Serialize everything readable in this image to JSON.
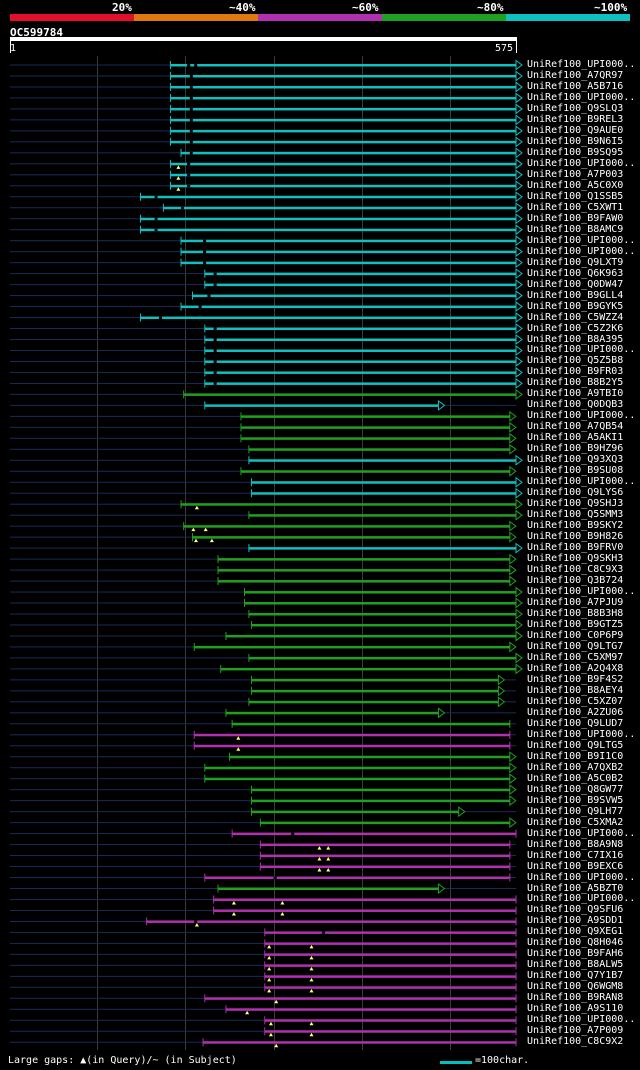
{
  "colors": {
    "bg": "#000000",
    "text": "#ffffff",
    "backbone": "#1a2a5a",
    "grid": "#3a3a3a",
    "marker": "#ffff80",
    "bands": [
      "#e0102a",
      "#e07810",
      "#b030b0",
      "#20a020",
      "#10c0c0"
    ],
    "hit": {
      "c": "#10c0c0",
      "g": "#20a020",
      "m": "#b030b0"
    }
  },
  "legend": {
    "labels": [
      "20%",
      "~40%",
      "~60%",
      "~80%",
      "~100%"
    ]
  },
  "query": {
    "id": "OC599784",
    "start": "1",
    "end": "575",
    "length": 575
  },
  "footer": {
    "gaps_text": "Large gaps: ▲(in Query)/~ (in Subject)",
    "scale_text": "=100char."
  },
  "hits": [
    {
      "label": "UniRef100_UPI000..",
      "c": "c",
      "s": 183,
      "e": 575,
      "a": 1,
      "bk": [
        202,
        210
      ]
    },
    {
      "label": "UniRef100_A7QR97",
      "c": "c",
      "s": 183,
      "e": 575,
      "a": 1,
      "bk": [
        205
      ]
    },
    {
      "label": "UniRef100_A5B716",
      "c": "c",
      "s": 183,
      "e": 575,
      "a": 1,
      "bk": [
        205
      ]
    },
    {
      "label": "UniRef100_UPI000..",
      "c": "c",
      "s": 183,
      "e": 575,
      "a": 1,
      "bk": [
        205
      ]
    },
    {
      "label": "UniRef100_Q9SLQ3",
      "c": "c",
      "s": 183,
      "e": 575,
      "a": 1,
      "bk": [
        205
      ]
    },
    {
      "label": "UniRef100_B9REL3",
      "c": "c",
      "s": 183,
      "e": 575,
      "a": 1,
      "bk": [
        205
      ]
    },
    {
      "label": "UniRef100_Q9AUE0",
      "c": "c",
      "s": 183,
      "e": 575,
      "a": 1,
      "bk": [
        205
      ]
    },
    {
      "label": "UniRef100_B9N6I5",
      "c": "c",
      "s": 183,
      "e": 575,
      "a": 1,
      "bk": [
        205
      ]
    },
    {
      "label": "UniRef100_B9SQ95",
      "c": "c",
      "s": 195,
      "e": 575,
      "a": 1,
      "bk": [
        205
      ]
    },
    {
      "label": "UniRef100_UPI000..",
      "c": "c",
      "s": 183,
      "e": 575,
      "a": 1,
      "bk": [
        202
      ],
      "mk": [
        192
      ]
    },
    {
      "label": "UniRef100_A7P003",
      "c": "c",
      "s": 183,
      "e": 575,
      "a": 1,
      "bk": [
        202
      ],
      "mk": [
        192
      ]
    },
    {
      "label": "UniRef100_A5C0X0",
      "c": "c",
      "s": 183,
      "e": 575,
      "a": 1,
      "bk": [
        202
      ],
      "mk": [
        192
      ]
    },
    {
      "label": "UniRef100_Q1SSB5",
      "c": "c",
      "s": 149,
      "e": 575,
      "a": 1,
      "bk": [
        165
      ]
    },
    {
      "label": "UniRef100_C5XWT1",
      "c": "c",
      "s": 175,
      "e": 575,
      "a": 1,
      "bk": [
        195
      ]
    },
    {
      "label": "UniRef100_B9FAW0",
      "c": "c",
      "s": 149,
      "e": 575,
      "a": 1,
      "bk": [
        165
      ]
    },
    {
      "label": "UniRef100_B8AMC9",
      "c": "c",
      "s": 149,
      "e": 575,
      "a": 1,
      "bk": [
        165
      ]
    },
    {
      "label": "UniRef100_UPI000..",
      "c": "c",
      "s": 195,
      "e": 575,
      "a": 1,
      "bk": [
        220
      ]
    },
    {
      "label": "UniRef100_UPI000..",
      "c": "c",
      "s": 195,
      "e": 575,
      "a": 1,
      "bk": [
        220
      ]
    },
    {
      "label": "UniRef100_Q9LXT9",
      "c": "c",
      "s": 195,
      "e": 575,
      "a": 1,
      "bk": [
        220
      ]
    },
    {
      "label": "UniRef100_Q6K963",
      "c": "c",
      "s": 222,
      "e": 575,
      "a": 1,
      "bk": [
        232
      ]
    },
    {
      "label": "UniRef100_Q0DW47",
      "c": "c",
      "s": 222,
      "e": 575,
      "a": 1,
      "bk": [
        232
      ]
    },
    {
      "label": "UniRef100_B9GLL4",
      "c": "c",
      "s": 208,
      "e": 575,
      "a": 1,
      "bk": [
        225
      ]
    },
    {
      "label": "UniRef100_B9GYK5",
      "c": "c",
      "s": 195,
      "e": 575,
      "a": 1,
      "bk": [
        215
      ]
    },
    {
      "label": "UniRef100_C5WZZ4",
      "c": "c",
      "s": 149,
      "e": 575,
      "a": 1,
      "bk": [
        170
      ]
    },
    {
      "label": "UniRef100_C5Z2K6",
      "c": "c",
      "s": 222,
      "e": 575,
      "a": 1,
      "bk": [
        232
      ]
    },
    {
      "label": "UniRef100_B8A395",
      "c": "c",
      "s": 222,
      "e": 575,
      "a": 1,
      "bk": [
        232
      ]
    },
    {
      "label": "UniRef100_UPI000..",
      "c": "c",
      "s": 222,
      "e": 575,
      "a": 1,
      "bk": [
        232
      ]
    },
    {
      "label": "UniRef100_Q5Z5B8",
      "c": "c",
      "s": 222,
      "e": 575,
      "a": 1,
      "bk": [
        232
      ]
    },
    {
      "label": "UniRef100_B9FR03",
      "c": "c",
      "s": 222,
      "e": 575,
      "a": 1,
      "bk": [
        232
      ]
    },
    {
      "label": "UniRef100_B8B2Y5",
      "c": "c",
      "s": 222,
      "e": 575,
      "a": 1,
      "bk": [
        232
      ]
    },
    {
      "label": "UniRef100_A9TBI0",
      "c": "g",
      "s": 198,
      "e": 575,
      "a": 1,
      "bk": []
    },
    {
      "label": "UniRef100_Q0DQB3",
      "c": "c",
      "s": 222,
      "e": 487,
      "a": 1,
      "bk": []
    },
    {
      "label": "UniRef100_UPI000..",
      "c": "g",
      "s": 263,
      "e": 568,
      "a": 1,
      "bk": []
    },
    {
      "label": "UniRef100_A7QB54",
      "c": "g",
      "s": 263,
      "e": 568,
      "a": 1,
      "bk": []
    },
    {
      "label": "UniRef100_A5AKI1",
      "c": "g",
      "s": 263,
      "e": 568,
      "a": 1,
      "bk": []
    },
    {
      "label": "UniRef100_B9HZ96",
      "c": "g",
      "s": 272,
      "e": 568,
      "a": 1,
      "bk": []
    },
    {
      "label": "UniRef100_Q93XQ3",
      "c": "c",
      "s": 272,
      "e": 575,
      "a": 1,
      "bk": []
    },
    {
      "label": "UniRef100_B9SU08",
      "c": "g",
      "s": 263,
      "e": 568,
      "a": 1,
      "bk": []
    },
    {
      "label": "UniRef100_UPI000..",
      "c": "c",
      "s": 275,
      "e": 575,
      "a": 1,
      "bk": []
    },
    {
      "label": "UniRef100_Q9LYS6",
      "c": "c",
      "s": 275,
      "e": 575,
      "a": 1,
      "bk": []
    },
    {
      "label": "UniRef100_Q9SHJ3",
      "c": "g",
      "s": 195,
      "e": 575,
      "a": 1,
      "bk": [],
      "mk": [
        213
      ]
    },
    {
      "label": "UniRef100_Q5SMM3",
      "c": "g",
      "s": 272,
      "e": 575,
      "a": 1,
      "bk": []
    },
    {
      "label": "UniRef100_B9SKY2",
      "c": "g",
      "s": 198,
      "e": 568,
      "a": 1,
      "bk": [],
      "mk": [
        209,
        223
      ]
    },
    {
      "label": "UniRef100_B9H826",
      "c": "g",
      "s": 208,
      "e": 568,
      "a": 1,
      "bk": [],
      "mk": [
        212,
        230
      ]
    },
    {
      "label": "UniRef100_B9FRV0",
      "c": "c",
      "s": 272,
      "e": 575,
      "a": 1,
      "bk": []
    },
    {
      "label": "UniRef100_Q9SKH3",
      "c": "g",
      "s": 237,
      "e": 568,
      "a": 1,
      "bk": []
    },
    {
      "label": "UniRef100_C8C9X3",
      "c": "g",
      "s": 237,
      "e": 568,
      "a": 1,
      "bk": []
    },
    {
      "label": "UniRef100_Q3B724",
      "c": "g",
      "s": 237,
      "e": 568,
      "a": 1,
      "bk": []
    },
    {
      "label": "UniRef100_UPI000..",
      "c": "g",
      "s": 267,
      "e": 575,
      "a": 1,
      "bk": []
    },
    {
      "label": "UniRef100_A7PJU9",
      "c": "g",
      "s": 267,
      "e": 575,
      "a": 1,
      "bk": []
    },
    {
      "label": "UniRef100_B8B3H8",
      "c": "g",
      "s": 272,
      "e": 575,
      "a": 1,
      "bk": []
    },
    {
      "label": "UniRef100_B9GTZ5",
      "c": "g",
      "s": 275,
      "e": 575,
      "a": 1,
      "bk": []
    },
    {
      "label": "UniRef100_C0P6P9",
      "c": "g",
      "s": 246,
      "e": 575,
      "a": 1,
      "bk": []
    },
    {
      "label": "UniRef100_Q9LTG7",
      "c": "g",
      "s": 210,
      "e": 568,
      "a": 1,
      "bk": []
    },
    {
      "label": "UniRef100_C5XM97",
      "c": "g",
      "s": 272,
      "e": 575,
      "a": 1,
      "bk": []
    },
    {
      "label": "UniRef100_A2Q4X8",
      "c": "g",
      "s": 240,
      "e": 575,
      "a": 1,
      "bk": []
    },
    {
      "label": "UniRef100_B9F4S2",
      "c": "g",
      "s": 275,
      "e": 555,
      "a": 1,
      "bk": []
    },
    {
      "label": "UniRef100_B8AEY4",
      "c": "g",
      "s": 275,
      "e": 555,
      "a": 1,
      "bk": []
    },
    {
      "label": "UniRef100_C5XZ07",
      "c": "g",
      "s": 272,
      "e": 555,
      "a": 1,
      "bk": []
    },
    {
      "label": "UniRef100_A2ZU06",
      "c": "g",
      "s": 246,
      "e": 487,
      "a": 1,
      "bk": []
    },
    {
      "label": "UniRef100_Q9LUD7",
      "c": "g",
      "s": 253,
      "e": 568,
      "a": 0,
      "bk": []
    },
    {
      "label": "UniRef100_UPI000..",
      "c": "m",
      "s": 210,
      "e": 568,
      "a": 0,
      "bk": [],
      "mk": [
        260
      ]
    },
    {
      "label": "UniRef100_Q9LTG5",
      "c": "m",
      "s": 210,
      "e": 568,
      "a": 0,
      "bk": [],
      "mk": [
        260
      ]
    },
    {
      "label": "UniRef100_B9I1C0",
      "c": "g",
      "s": 250,
      "e": 568,
      "a": 1,
      "bk": []
    },
    {
      "label": "UniRef100_A7QXB2",
      "c": "g",
      "s": 222,
      "e": 568,
      "a": 1,
      "bk": []
    },
    {
      "label": "UniRef100_A5C0B2",
      "c": "g",
      "s": 222,
      "e": 568,
      "a": 1,
      "bk": []
    },
    {
      "label": "UniRef100_Q8GW77",
      "c": "g",
      "s": 275,
      "e": 568,
      "a": 1,
      "bk": []
    },
    {
      "label": "UniRef100_B9SVW5",
      "c": "g",
      "s": 275,
      "e": 568,
      "a": 1,
      "bk": []
    },
    {
      "label": "UniRef100_Q9LH77",
      "c": "g",
      "s": 275,
      "e": 510,
      "a": 1,
      "bk": []
    },
    {
      "label": "UniRef100_C5XMA2",
      "c": "g",
      "s": 285,
      "e": 568,
      "a": 1,
      "bk": []
    },
    {
      "label": "UniRef100_UPI000..",
      "c": "m",
      "s": 253,
      "e": 575,
      "a": 0,
      "bk": [
        320
      ]
    },
    {
      "label": "UniRef100_B8A9N8",
      "c": "m",
      "s": 285,
      "e": 568,
      "a": 0,
      "bk": [],
      "mk": [
        352,
        362
      ]
    },
    {
      "label": "UniRef100_C7IX16",
      "c": "m",
      "s": 285,
      "e": 568,
      "a": 0,
      "bk": [],
      "mk": [
        352,
        362
      ]
    },
    {
      "label": "UniRef100_B9EXC6",
      "c": "m",
      "s": 285,
      "e": 568,
      "a": 0,
      "bk": [],
      "mk": [
        352,
        362
      ]
    },
    {
      "label": "UniRef100_UPI000..",
      "c": "m",
      "s": 222,
      "e": 568,
      "a": 0,
      "bk": [
        300
      ]
    },
    {
      "label": "UniRef100_A5BZT0",
      "c": "g",
      "s": 237,
      "e": 487,
      "a": 1,
      "bk": []
    },
    {
      "label": "UniRef100_UPI000..",
      "c": "m",
      "s": 232,
      "e": 575,
      "a": 0,
      "bk": [],
      "mk": [
        255,
        310
      ]
    },
    {
      "label": "UniRef100_Q9SFU6",
      "c": "m",
      "s": 232,
      "e": 575,
      "a": 0,
      "bk": [],
      "mk": [
        255,
        310
      ]
    },
    {
      "label": "UniRef100_A9SDD1",
      "c": "m",
      "s": 156,
      "e": 575,
      "a": 0,
      "bk": [
        210
      ],
      "mk": [
        213
      ]
    },
    {
      "label": "UniRef100_Q9XEG1",
      "c": "m",
      "s": 290,
      "e": 575,
      "a": 0,
      "bk": [
        355
      ]
    },
    {
      "label": "UniRef100_Q8H046",
      "c": "m",
      "s": 290,
      "e": 575,
      "a": 0,
      "bk": [],
      "mk": [
        295,
        343
      ]
    },
    {
      "label": "UniRef100_B9FAH6",
      "c": "m",
      "s": 290,
      "e": 575,
      "a": 0,
      "bk": [],
      "mk": [
        295,
        343
      ]
    },
    {
      "label": "UniRef100_B8ALW5",
      "c": "m",
      "s": 290,
      "e": 575,
      "a": 0,
      "bk": [],
      "mk": [
        295,
        343
      ]
    },
    {
      "label": "UniRef100_Q7Y1B7",
      "c": "m",
      "s": 290,
      "e": 575,
      "a": 0,
      "bk": [],
      "mk": [
        295,
        343
      ]
    },
    {
      "label": "UniRef100_Q6WGM8",
      "c": "m",
      "s": 290,
      "e": 575,
      "a": 0,
      "bk": [],
      "mk": [
        295,
        343
      ]
    },
    {
      "label": "UniRef100_B9RAN8",
      "c": "m",
      "s": 222,
      "e": 575,
      "a": 0,
      "bk": [],
      "mk": [
        303
      ]
    },
    {
      "label": "UniRef100_A9S110",
      "c": "m",
      "s": 246,
      "e": 575,
      "a": 0,
      "bk": [],
      "mk": [
        270
      ]
    },
    {
      "label": "UniRef100_UPI000..",
      "c": "m",
      "s": 290,
      "e": 575,
      "a": 0,
      "bk": [],
      "mk": [
        297,
        343
      ]
    },
    {
      "label": "UniRef100_A7P009",
      "c": "m",
      "s": 290,
      "e": 575,
      "a": 0,
      "bk": [],
      "mk": [
        297,
        343
      ]
    },
    {
      "label": "UniRef100_C8C9X2",
      "c": "m",
      "s": 220,
      "e": 575,
      "a": 0,
      "bk": [],
      "mk": [
        303
      ]
    }
  ]
}
